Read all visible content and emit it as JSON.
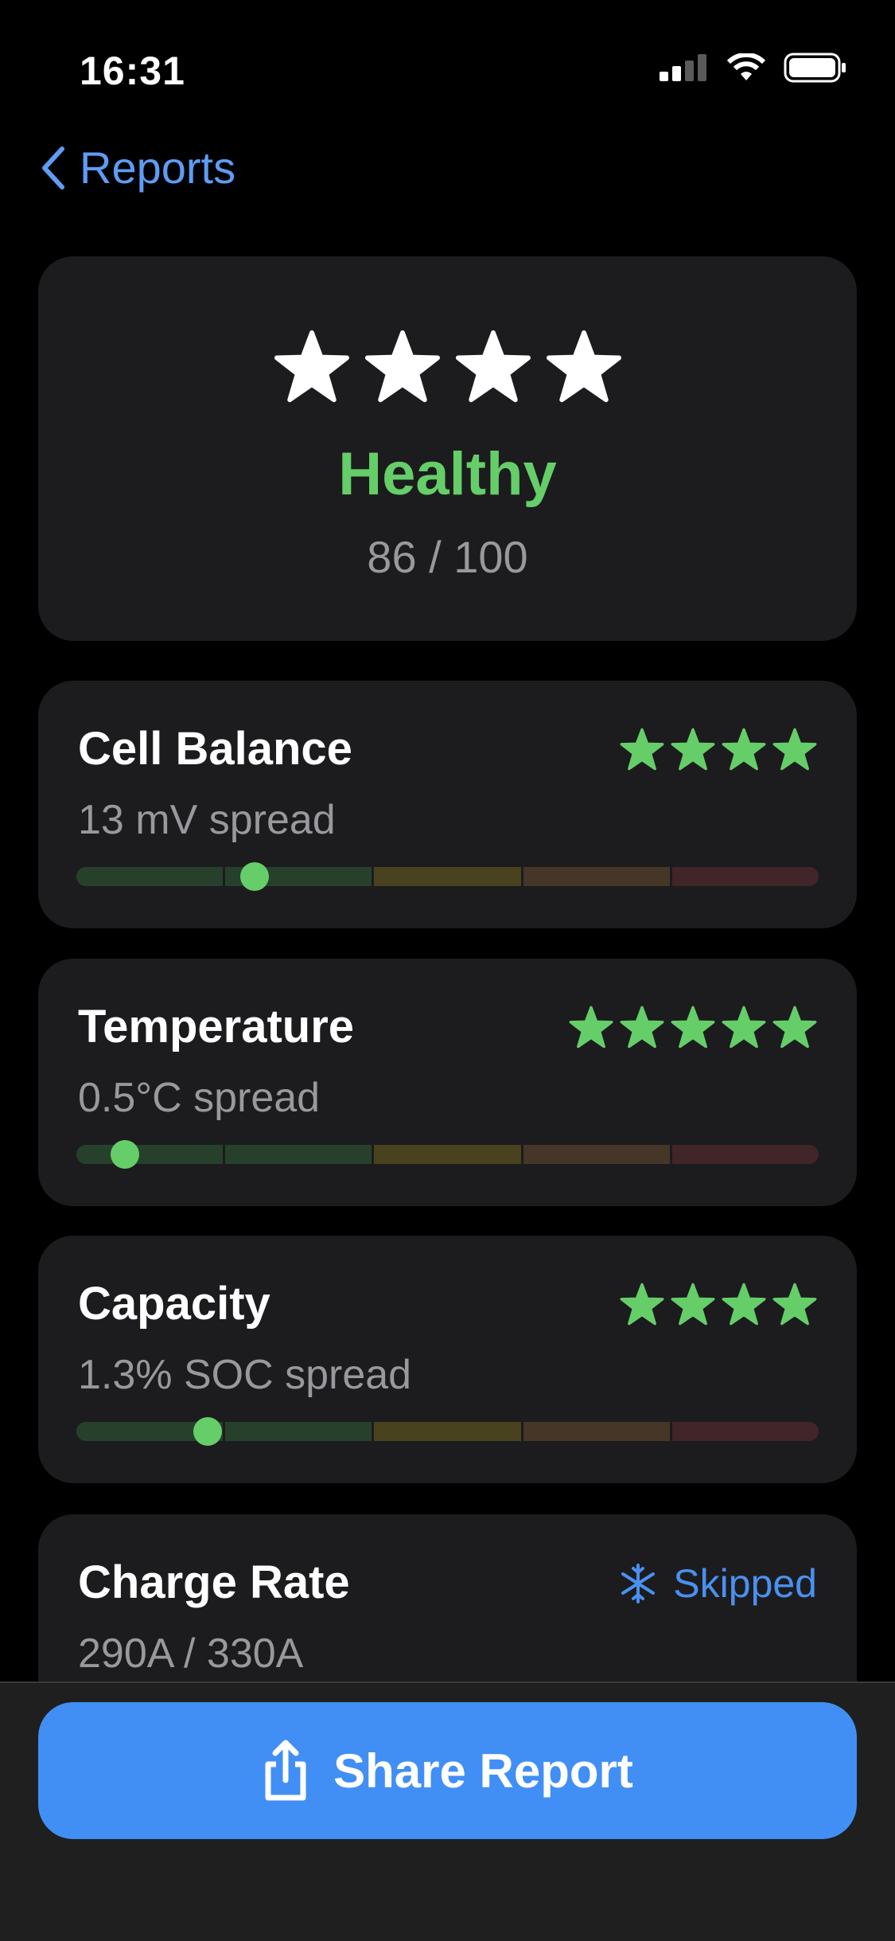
{
  "status_bar": {
    "time": "16:31",
    "icons": [
      "signal-icon",
      "wifi-icon",
      "battery-icon"
    ]
  },
  "nav": {
    "back_label": "Reports"
  },
  "summary": {
    "rating": 4,
    "status": "Healthy",
    "score": "86 / 100",
    "status_color": "#65ce69"
  },
  "metrics": [
    {
      "title": "Cell Balance",
      "rating": 4,
      "value": "13 mV spread",
      "indicator": 0.24
    },
    {
      "title": "Temperature",
      "rating": 5,
      "value": "0.5°C spread",
      "indicator": 0.065
    },
    {
      "title": "Capacity",
      "rating": 4,
      "value": "1.3% SOC spread",
      "indicator": 0.177
    },
    {
      "title": "Charge Rate",
      "status": "Skipped",
      "status_icon": "snowflake-icon",
      "value": "290A / 330A"
    }
  ],
  "scale_colors": [
    "#27402c",
    "#27402c",
    "#48421f",
    "#463628",
    "#412528"
  ],
  "colors": {
    "accent": "#418ff5",
    "link": "#5e9cf5",
    "good": "#65ce69",
    "card": "#1c1c1e"
  },
  "actions": {
    "share_label": "Share Report"
  }
}
